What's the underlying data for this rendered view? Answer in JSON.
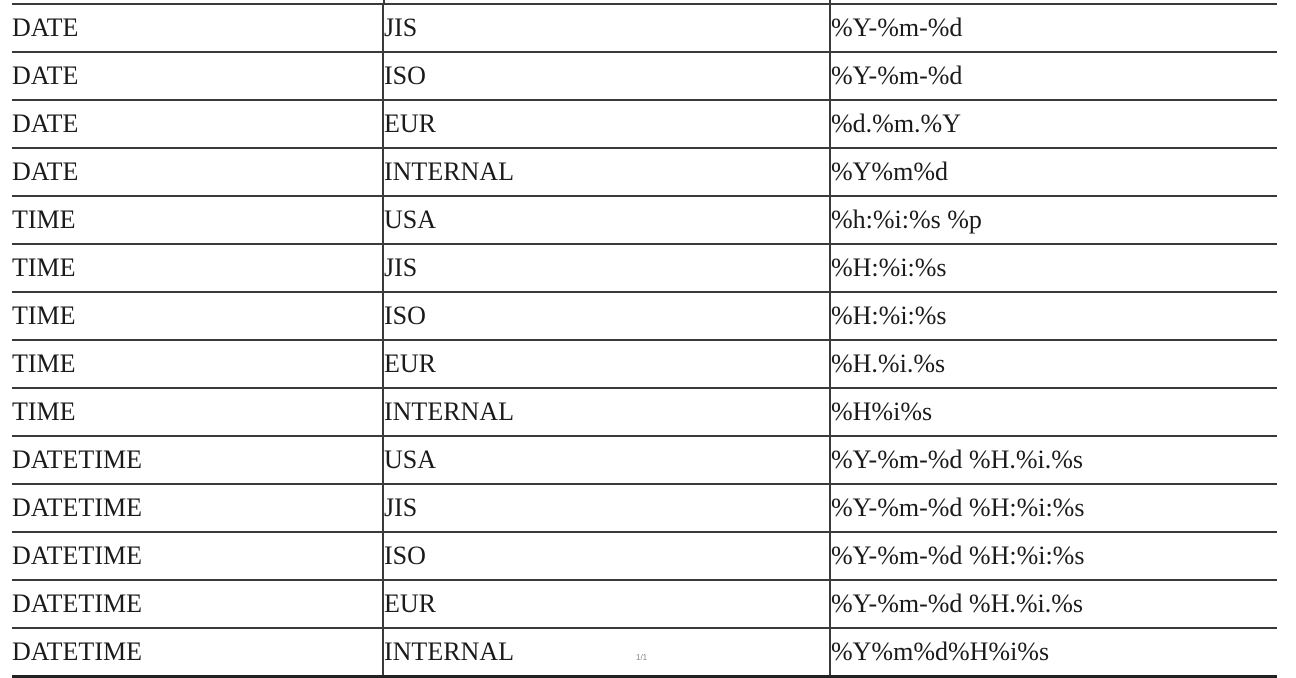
{
  "table": {
    "rows": [
      {
        "type": "DATE",
        "format": "JIS",
        "string": "%Y-%m-%d"
      },
      {
        "type": "DATE",
        "format": "ISO",
        "string": "%Y-%m-%d"
      },
      {
        "type": "DATE",
        "format": "EUR",
        "string": "%d.%m.%Y"
      },
      {
        "type": "DATE",
        "format": "INTERNAL",
        "string": "%Y%m%d"
      },
      {
        "type": "TIME",
        "format": "USA",
        "string": "%h:%i:%s %p"
      },
      {
        "type": "TIME",
        "format": "JIS",
        "string": "%H:%i:%s"
      },
      {
        "type": "TIME",
        "format": "ISO",
        "string": "%H:%i:%s"
      },
      {
        "type": "TIME",
        "format": "EUR",
        "string": "%H.%i.%s"
      },
      {
        "type": "TIME",
        "format": "INTERNAL",
        "string": "%H%i%s"
      },
      {
        "type": "DATETIME",
        "format": "USA",
        "string": "%Y-%m-%d %H.%i.%s"
      },
      {
        "type": "DATETIME",
        "format": "JIS",
        "string": "%Y-%m-%d %H:%i:%s"
      },
      {
        "type": "DATETIME",
        "format": "ISO",
        "string": "%Y-%m-%d %H:%i:%s"
      },
      {
        "type": "DATETIME",
        "format": "EUR",
        "string": "%Y-%m-%d %H.%i.%s"
      },
      {
        "type": "DATETIME",
        "format": "INTERNAL",
        "string": "%Y%m%d%H%i%s"
      }
    ]
  },
  "footer": {
    "page_number": "1/1"
  }
}
